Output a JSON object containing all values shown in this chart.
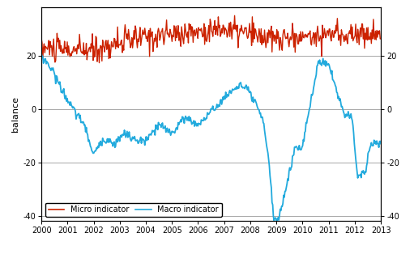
{
  "t_start": 2000,
  "t_end": 2013,
  "ylim": [
    -42,
    38
  ],
  "yticks": [
    -40,
    -20,
    0,
    20
  ],
  "xticks": [
    2000,
    2001,
    2002,
    2003,
    2004,
    2005,
    2006,
    2007,
    2008,
    2009,
    2010,
    2011,
    2012,
    2013
  ],
  "ylabel": "balance",
  "micro_color": "#cc2200",
  "macro_color": "#22aadd",
  "legend_labels": [
    "Micro indicator",
    "Macro indicator"
  ],
  "bg_color": "#ffffff",
  "grid_color": "#999999",
  "linewidth_micro": 1.0,
  "linewidth_macro": 1.3,
  "micro_base_x": [
    2000,
    2001,
    2002,
    2003,
    2004,
    2005,
    2006,
    2007,
    2008,
    2009,
    2010,
    2011,
    2012,
    2013
  ],
  "micro_base_y": [
    23,
    22,
    22,
    25,
    27,
    28,
    29,
    30,
    28,
    26,
    27,
    28,
    28,
    28
  ],
  "macro_base_x": [
    2000,
    2000.4,
    2000.8,
    2001.2,
    2001.6,
    2002.0,
    2002.4,
    2002.8,
    2003.2,
    2003.6,
    2004.0,
    2004.5,
    2005.0,
    2005.5,
    2006.0,
    2006.5,
    2007.0,
    2007.3,
    2007.6,
    2007.9,
    2008.2,
    2008.5,
    2008.7,
    2008.9,
    2009.1,
    2009.4,
    2009.7,
    2010.0,
    2010.3,
    2010.6,
    2010.8,
    2011.0,
    2011.3,
    2011.6,
    2011.9,
    2012.1,
    2012.4,
    2012.6,
    2012.9,
    2013.0
  ],
  "macro_base_y": [
    20,
    15,
    7,
    0,
    -5,
    -17,
    -11,
    -13,
    -9,
    -12,
    -12,
    -6,
    -9,
    -3,
    -6,
    -1,
    4,
    7,
    9,
    7,
    2,
    -5,
    -18,
    -42,
    -41,
    -28,
    -15,
    -14,
    2,
    17,
    18,
    17,
    7,
    -2,
    -3,
    -25,
    -24,
    -13,
    -13,
    -13
  ],
  "n_points": 500,
  "micro_noise_std": 2.5,
  "macro_noise_std": 0.8,
  "micro_seed": 10,
  "macro_seed": 20
}
